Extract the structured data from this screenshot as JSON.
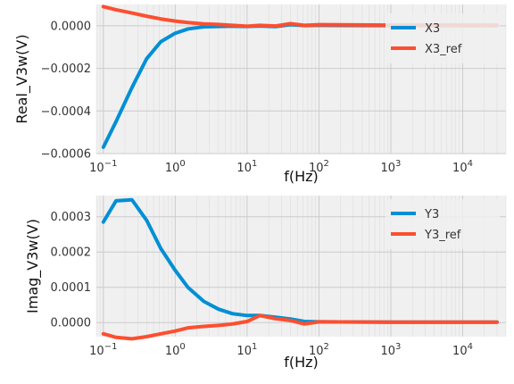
{
  "chart_data": [
    {
      "type": "line",
      "xlabel": "f(Hz)",
      "ylabel": "Real_V3w(V)",
      "xscale": "log",
      "xlim": [
        0.08,
        40000
      ],
      "ylim": [
        -0.0006,
        0.0001
      ],
      "xticks": [
        "10^-1",
        "10^0",
        "10^1",
        "10^2",
        "10^3",
        "10^4"
      ],
      "yticks": [
        "-0.0006",
        "-0.0004",
        "-0.0002",
        "0.0000"
      ],
      "legend": "top-right",
      "grid": true,
      "series": [
        {
          "name": "X3",
          "color": "#008fd5",
          "x": [
            0.1,
            0.15,
            0.25,
            0.4,
            0.63,
            1,
            1.5,
            2.5,
            4,
            6.3,
            10,
            15,
            25,
            40,
            63,
            100,
            1000,
            10000,
            30000
          ],
          "y": [
            -0.00057,
            -0.00045,
            -0.00029,
            -0.000155,
            -7.5e-05,
            -3.5e-05,
            -1.5e-05,
            -5e-06,
            -3e-06,
            -2e-06,
            -3e-06,
            -1e-06,
            -4e-06,
            5e-06,
            1e-06,
            2e-06,
            1e-06,
            1e-06,
            1e-06
          ]
        },
        {
          "name": "X3_ref",
          "color": "#fc4f30",
          "x": [
            0.1,
            0.15,
            0.25,
            0.4,
            0.63,
            1,
            1.5,
            2.5,
            4,
            6.3,
            10,
            15,
            25,
            40,
            63,
            100,
            1000,
            10000,
            30000
          ],
          "y": [
            9e-05,
            7.5e-05,
            6e-05,
            4.5e-05,
            3.2e-05,
            2.2e-05,
            1.5e-05,
            9e-06,
            6e-06,
            2e-06,
            -2e-06,
            2e-06,
            -1e-06,
            1e-05,
            2e-06,
            5e-06,
            3e-06,
            3e-06,
            3e-06
          ]
        }
      ]
    },
    {
      "type": "line",
      "xlabel": "f(Hz)",
      "ylabel": "Imag_V3w(V)",
      "xscale": "log",
      "xlim": [
        0.08,
        40000
      ],
      "ylim": [
        -4e-05,
        0.00036
      ],
      "xticks": [
        "10^-1",
        "10^0",
        "10^1",
        "10^2",
        "10^3",
        "10^4"
      ],
      "yticks": [
        "0.0000",
        "0.0001",
        "0.0002",
        "0.0003"
      ],
      "legend": "top-right",
      "grid": true,
      "series": [
        {
          "name": "Y3",
          "color": "#008fd5",
          "x": [
            0.1,
            0.15,
            0.25,
            0.4,
            0.63,
            1,
            1.5,
            2.5,
            4,
            6.3,
            10,
            15,
            25,
            40,
            63,
            100,
            1000,
            10000,
            30000
          ],
          "y": [
            0.000285,
            0.000345,
            0.000348,
            0.00029,
            0.00021,
            0.000148,
            0.0001,
            6e-05,
            3.8e-05,
            2.5e-05,
            2e-05,
            2e-05,
            1.5e-05,
            1e-05,
            3e-06,
            2e-06,
            1e-06,
            1e-06,
            1e-06
          ]
        },
        {
          "name": "Y3_ref",
          "color": "#fc4f30",
          "x": [
            0.1,
            0.15,
            0.25,
            0.4,
            0.63,
            1,
            1.5,
            2.5,
            4,
            6.3,
            10,
            15,
            25,
            40,
            63,
            100,
            1000,
            10000,
            30000
          ],
          "y": [
            -3.2e-05,
            -4.2e-05,
            -4.6e-05,
            -4e-05,
            -3.2e-05,
            -2.4e-05,
            -1.5e-05,
            -1.1e-05,
            -8e-06,
            -4e-06,
            3e-06,
            2e-05,
            1.1e-05,
            6e-06,
            -4e-06,
            2e-06,
            1e-06,
            1e-06,
            1e-06
          ]
        }
      ]
    }
  ]
}
